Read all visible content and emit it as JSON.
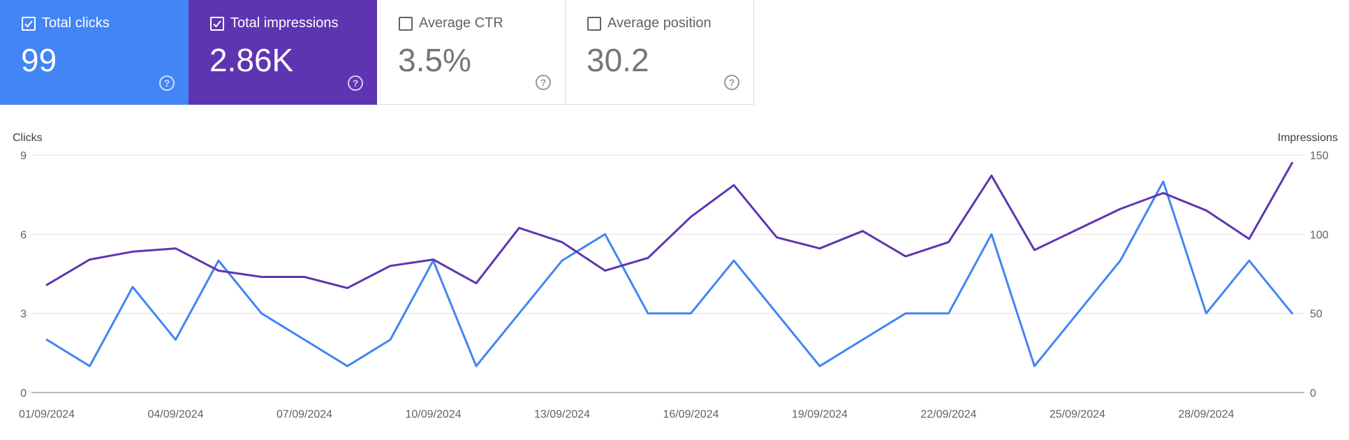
{
  "metrics": [
    {
      "label": "Total clicks",
      "value": "99",
      "checked": true,
      "color": "#4285f4"
    },
    {
      "label": "Total impressions",
      "value": "2.86K",
      "checked": true,
      "color": "#5e35b1"
    },
    {
      "label": "Average CTR",
      "value": "3.5%",
      "checked": false,
      "color": "#ffffff"
    },
    {
      "label": "Average position",
      "value": "30.2",
      "checked": false,
      "color": "#ffffff"
    }
  ],
  "help_glyph": "?",
  "chart_data": {
    "type": "line",
    "y_left_label": "Clicks",
    "y_right_label": "Impressions",
    "y_left_ticks": [
      "0",
      "3",
      "6",
      "9"
    ],
    "y_right_ticks": [
      "0",
      "50",
      "100",
      "150"
    ],
    "y_left_range": [
      0,
      9
    ],
    "y_right_range": [
      0,
      150
    ],
    "grid": true,
    "x_tick_labels": [
      "01/09/2024",
      "04/09/2024",
      "07/09/2024",
      "10/09/2024",
      "13/09/2024",
      "16/09/2024",
      "19/09/2024",
      "22/09/2024",
      "25/09/2024",
      "28/09/2024"
    ],
    "x": [
      "01/09/2024",
      "02/09/2024",
      "03/09/2024",
      "04/09/2024",
      "05/09/2024",
      "06/09/2024",
      "07/09/2024",
      "08/09/2024",
      "09/09/2024",
      "10/09/2024",
      "11/09/2024",
      "12/09/2024",
      "13/09/2024",
      "14/09/2024",
      "15/09/2024",
      "16/09/2024",
      "17/09/2024",
      "18/09/2024",
      "19/09/2024",
      "20/09/2024",
      "21/09/2024",
      "22/09/2024",
      "23/09/2024",
      "24/09/2024",
      "25/09/2024",
      "26/09/2024",
      "27/09/2024",
      "28/09/2024",
      "29/09/2024",
      "30/09/2024"
    ],
    "series": [
      {
        "name": "Clicks",
        "axis": "left",
        "color": "#4285f4",
        "values": [
          2,
          1,
          4,
          2,
          5,
          3,
          2,
          1,
          2,
          5,
          1,
          3,
          5,
          6,
          3,
          3,
          5,
          3,
          1,
          2,
          3,
          3,
          6,
          1,
          3,
          5,
          8,
          3,
          5,
          3
        ]
      },
      {
        "name": "Impressions",
        "axis": "right",
        "color": "#5e35b1",
        "values": [
          68,
          84,
          89,
          91,
          77,
          73,
          73,
          66,
          80,
          84,
          69,
          104,
          95,
          77,
          85,
          111,
          131,
          98,
          91,
          102,
          86,
          95,
          137,
          90,
          103,
          116,
          126,
          115,
          97,
          145
        ]
      }
    ]
  }
}
